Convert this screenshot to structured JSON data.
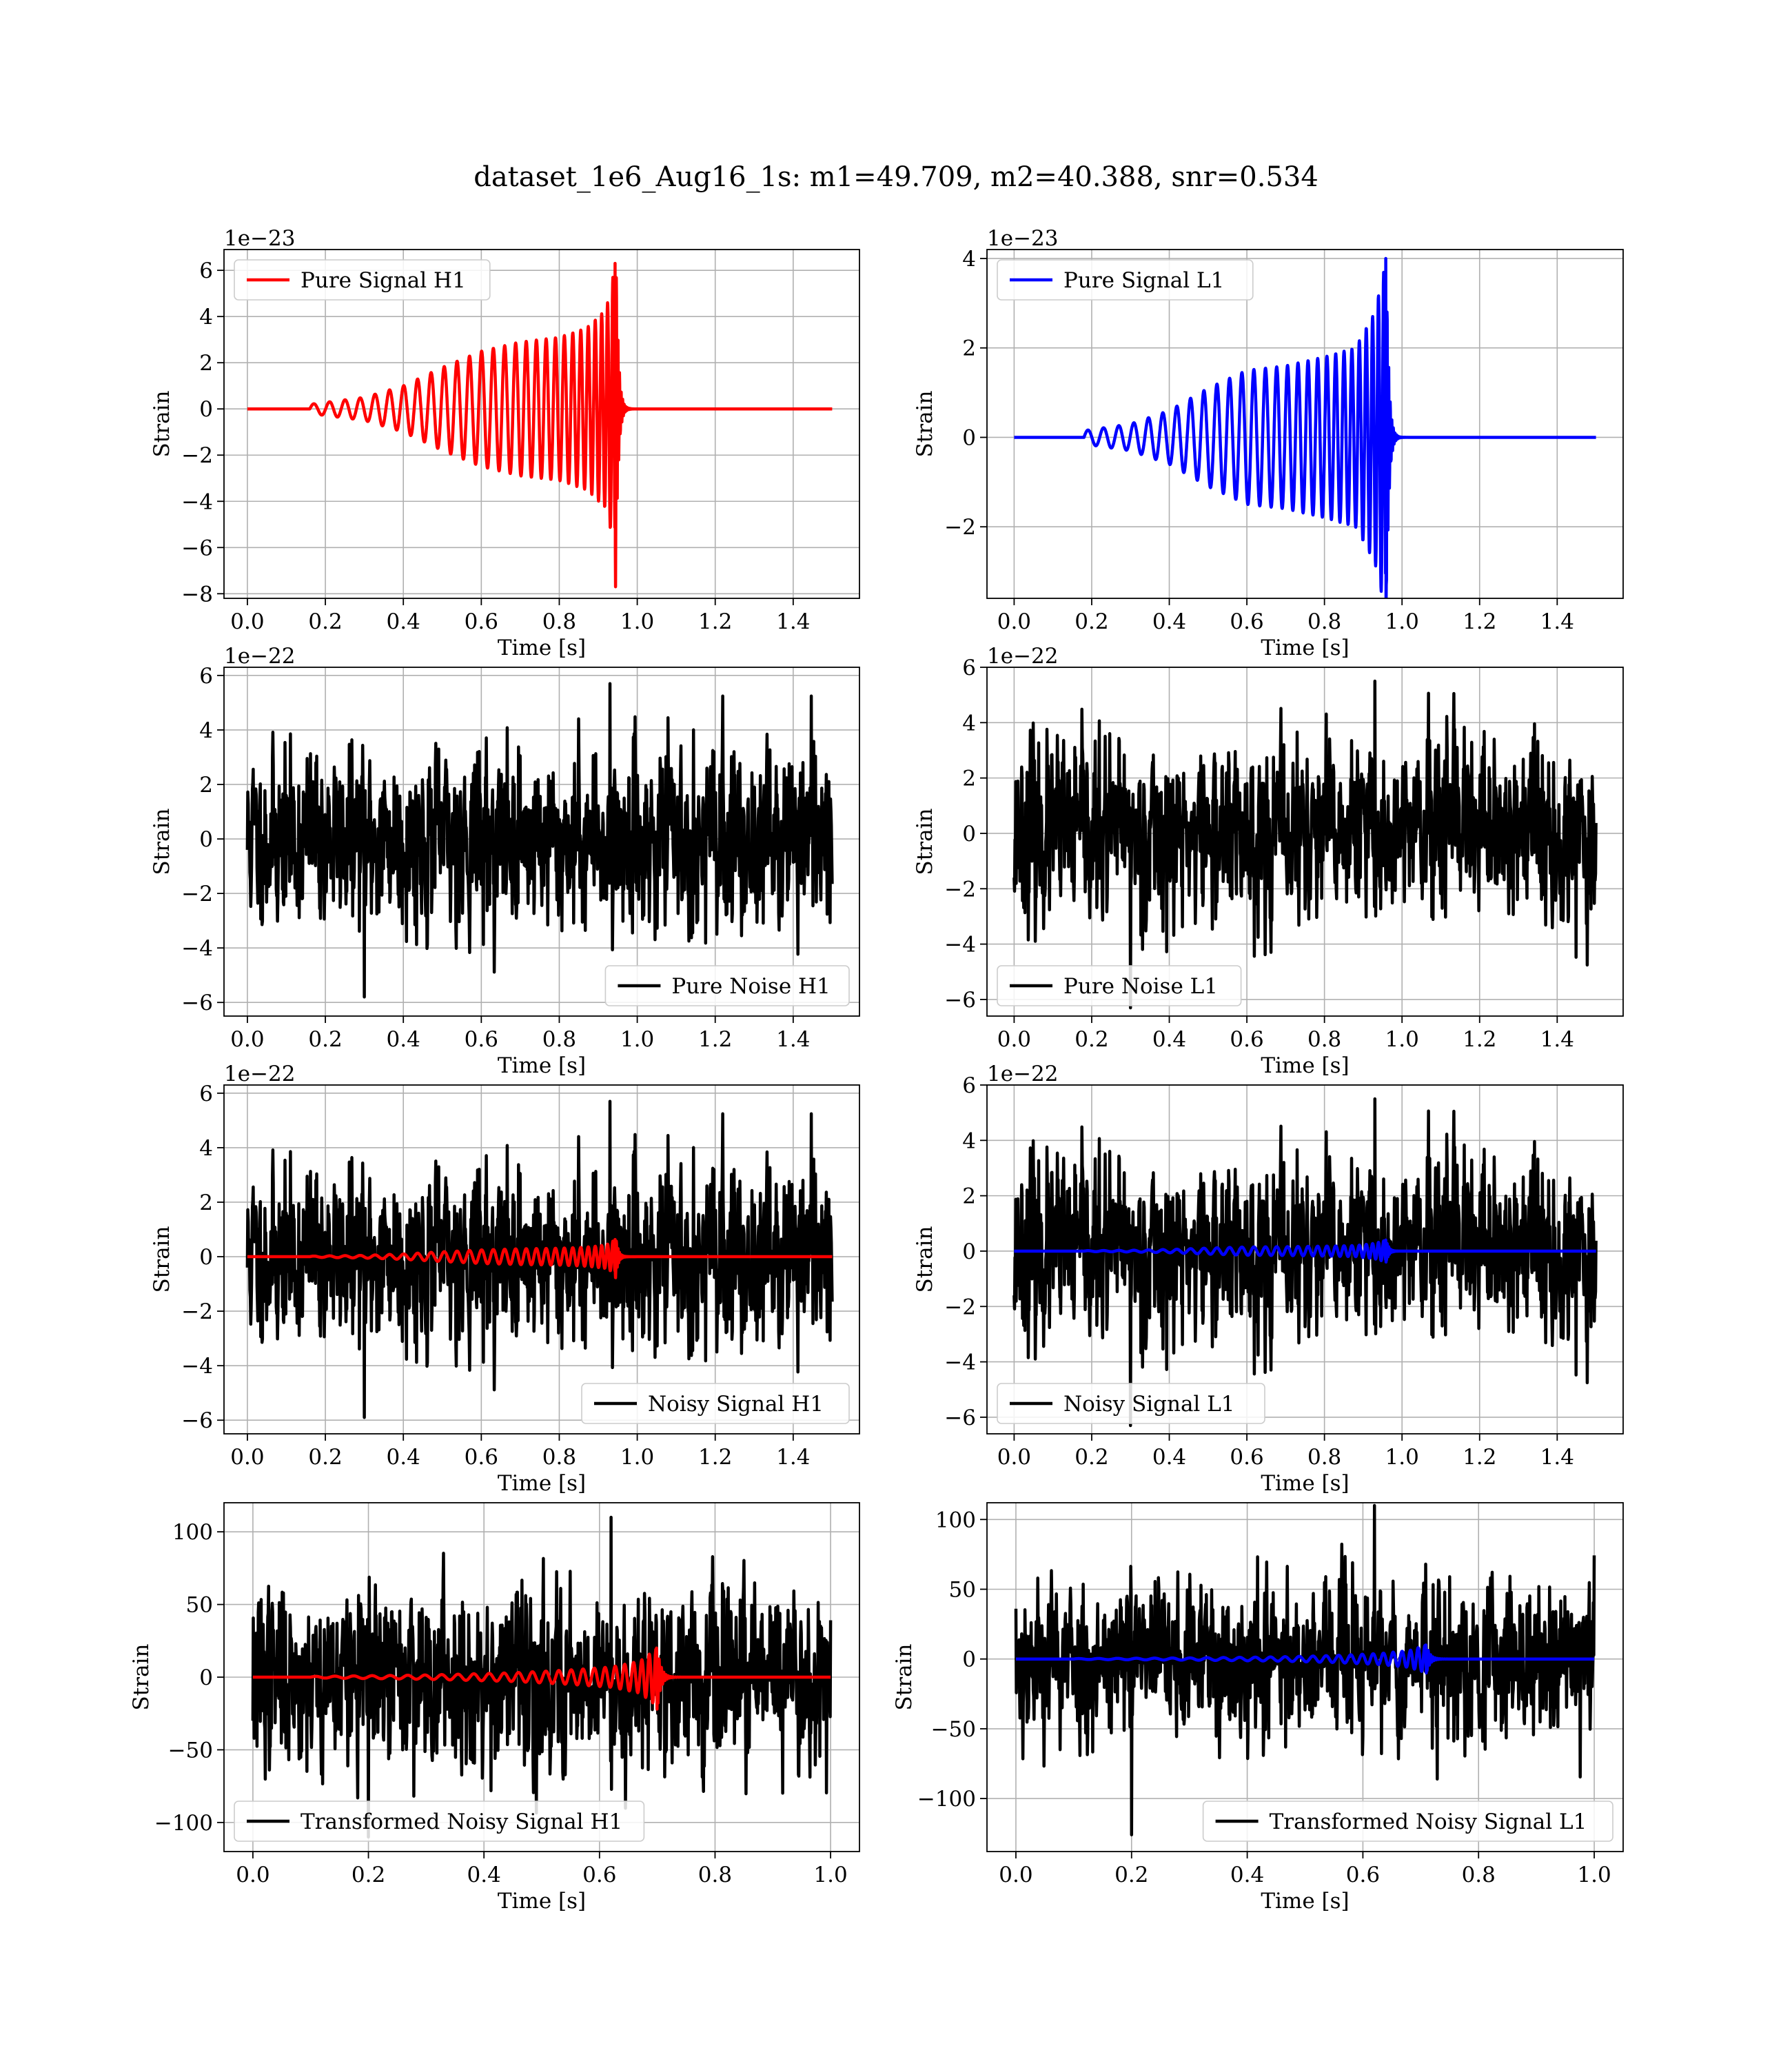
{
  "figure": {
    "suptitle": "dataset_1e6_Aug16_1s: m1=49.709, m2=40.388, snr=0.534"
  },
  "colors": {
    "h1_signal": "#ff0000",
    "l1_signal": "#0000ff",
    "noise": "#000000",
    "grid": "#b0b0b0",
    "axes": "#000000"
  },
  "chart_data": [
    {
      "id": "pure-signal-h1",
      "type": "line",
      "detector": "H1",
      "xlabel": "Time [s]",
      "ylabel": "Strain",
      "offset_text": "1e−23",
      "xlim": [
        -0.06,
        1.57
      ],
      "ylim": [
        -8.2,
        6.9
      ],
      "xticks": [
        0.0,
        0.2,
        0.4,
        0.6,
        0.8,
        1.0,
        1.2,
        1.4
      ],
      "xtick_labels": [
        "0.0",
        "0.2",
        "0.4",
        "0.6",
        "0.8",
        "1.0",
        "1.2",
        "1.4"
      ],
      "yticks": [
        -8,
        -6,
        -4,
        -2,
        0,
        2,
        4,
        6
      ],
      "ytick_labels": [
        "−8",
        "−6",
        "−4",
        "−2",
        "0",
        "2",
        "4",
        "6"
      ],
      "grid": true,
      "legend": {
        "position": "upper-left",
        "entries": [
          {
            "label": "Pure Signal H1",
            "color": "#ff0000"
          }
        ]
      },
      "series": [
        {
          "name": "Pure Signal H1",
          "color": "#ff0000",
          "kind": "chirp",
          "x_range": [
            0,
            1.5
          ],
          "start": 0.16,
          "merger": 0.945,
          "peak_pos": 6.3,
          "peak_neg": -7.7,
          "envelope": [
            [
              0.16,
              0.2
            ],
            [
              0.3,
              0.5
            ],
            [
              0.4,
              1.0
            ],
            [
              0.5,
              1.8
            ],
            [
              0.6,
              2.5
            ],
            [
              0.7,
              2.9
            ],
            [
              0.8,
              3.1
            ],
            [
              0.87,
              3.5
            ],
            [
              0.92,
              4.3
            ],
            [
              0.945,
              6.3
            ]
          ],
          "cycles": 32
        }
      ]
    },
    {
      "id": "pure-signal-l1",
      "type": "line",
      "detector": "L1",
      "xlabel": "Time [s]",
      "ylabel": "Strain",
      "offset_text": "1e−23",
      "xlim": [
        -0.07,
        1.57
      ],
      "ylim": [
        -3.6,
        4.2
      ],
      "xticks": [
        0.0,
        0.2,
        0.4,
        0.6,
        0.8,
        1.0,
        1.2,
        1.4
      ],
      "xtick_labels": [
        "0.0",
        "0.2",
        "0.4",
        "0.6",
        "0.8",
        "1.0",
        "1.2",
        "1.4"
      ],
      "yticks": [
        -2,
        0,
        2,
        4
      ],
      "ytick_labels": [
        "−2",
        "0",
        "2",
        "4"
      ],
      "grid": true,
      "legend": {
        "position": "upper-left",
        "entries": [
          {
            "label": "Pure Signal L1",
            "color": "#0000ff"
          }
        ]
      },
      "series": [
        {
          "name": "Pure Signal L1",
          "color": "#0000ff",
          "kind": "chirp",
          "x_range": [
            0,
            1.5
          ],
          "start": 0.18,
          "merger": 0.96,
          "peak_pos": 4.0,
          "peak_neg": -3.3,
          "envelope": [
            [
              0.18,
              0.15
            ],
            [
              0.3,
              0.3
            ],
            [
              0.4,
              0.6
            ],
            [
              0.5,
              1.1
            ],
            [
              0.6,
              1.5
            ],
            [
              0.7,
              1.6
            ],
            [
              0.8,
              1.8
            ],
            [
              0.88,
              2.0
            ],
            [
              0.93,
              2.8
            ],
            [
              0.96,
              4.0
            ]
          ],
          "cycles": 32
        }
      ]
    },
    {
      "id": "pure-noise-h1",
      "type": "line",
      "detector": "H1",
      "xlabel": "Time [s]",
      "ylabel": "Strain",
      "offset_text": "1e−22",
      "xlim": [
        -0.06,
        1.57
      ],
      "ylim": [
        -6.5,
        6.3
      ],
      "xticks": [
        0.0,
        0.2,
        0.4,
        0.6,
        0.8,
        1.0,
        1.2,
        1.4
      ],
      "xtick_labels": [
        "0.0",
        "0.2",
        "0.4",
        "0.6",
        "0.8",
        "1.0",
        "1.2",
        "1.4"
      ],
      "yticks": [
        -6,
        -4,
        -2,
        0,
        2,
        4,
        6
      ],
      "ytick_labels": [
        "−6",
        "−4",
        "−2",
        "0",
        "2",
        "4",
        "6"
      ],
      "grid": true,
      "legend": {
        "position": "lower-right",
        "entries": [
          {
            "label": "Pure Noise H1",
            "color": "#000000"
          }
        ]
      },
      "series": [
        {
          "name": "Pure Noise H1",
          "color": "#000000",
          "kind": "noise",
          "x_range": [
            0,
            1.5
          ],
          "sigma": 1.7,
          "max": 5.7,
          "min": -5.8,
          "seed": 11
        }
      ]
    },
    {
      "id": "pure-noise-l1",
      "type": "line",
      "detector": "L1",
      "xlabel": "Time [s]",
      "ylabel": "Strain",
      "offset_text": "1e−22",
      "xlim": [
        -0.07,
        1.57
      ],
      "ylim": [
        -6.6,
        6.0
      ],
      "xticks": [
        0.0,
        0.2,
        0.4,
        0.6,
        0.8,
        1.0,
        1.2,
        1.4
      ],
      "xtick_labels": [
        "0.0",
        "0.2",
        "0.4",
        "0.6",
        "0.8",
        "1.0",
        "1.2",
        "1.4"
      ],
      "yticks": [
        -6,
        -4,
        -2,
        0,
        2,
        4,
        6
      ],
      "ytick_labels": [
        "−6",
        "−4",
        "−2",
        "0",
        "2",
        "4",
        "6"
      ],
      "grid": true,
      "legend": {
        "position": "lower-left",
        "entries": [
          {
            "label": "Pure Noise L1",
            "color": "#000000"
          }
        ]
      },
      "series": [
        {
          "name": "Pure Noise L1",
          "color": "#000000",
          "kind": "noise",
          "x_range": [
            0,
            1.5
          ],
          "sigma": 1.7,
          "max": 5.5,
          "min": -6.3,
          "seed": 23
        }
      ]
    },
    {
      "id": "noisy-signal-h1",
      "type": "line",
      "detector": "H1",
      "xlabel": "Time [s]",
      "ylabel": "Strain",
      "offset_text": "1e−22",
      "xlim": [
        -0.06,
        1.57
      ],
      "ylim": [
        -6.5,
        6.3
      ],
      "xticks": [
        0.0,
        0.2,
        0.4,
        0.6,
        0.8,
        1.0,
        1.2,
        1.4
      ],
      "xtick_labels": [
        "0.0",
        "0.2",
        "0.4",
        "0.6",
        "0.8",
        "1.0",
        "1.2",
        "1.4"
      ],
      "yticks": [
        -6,
        -4,
        -2,
        0,
        2,
        4,
        6
      ],
      "ytick_labels": [
        "−6",
        "−4",
        "−2",
        "0",
        "2",
        "4",
        "6"
      ],
      "grid": true,
      "legend": {
        "position": "lower-right",
        "entries": [
          {
            "label": "Noisy Signal H1",
            "color": "#000000"
          }
        ]
      },
      "series": [
        {
          "name": "Noisy Signal H1",
          "color": "#000000",
          "kind": "noise",
          "x_range": [
            0,
            1.5
          ],
          "sigma": 1.7,
          "max": 5.7,
          "min": -5.9,
          "seed": 11
        },
        {
          "color": "#ff0000",
          "kind": "chirp",
          "x_range": [
            0,
            1.5
          ],
          "start": 0.16,
          "merger": 0.945,
          "peak_pos": 0.63,
          "peak_neg": -0.77,
          "envelope": [
            [
              0.16,
              0.02
            ],
            [
              0.3,
              0.05
            ],
            [
              0.4,
              0.1
            ],
            [
              0.5,
              0.18
            ],
            [
              0.6,
              0.25
            ],
            [
              0.7,
              0.29
            ],
            [
              0.8,
              0.31
            ],
            [
              0.87,
              0.35
            ],
            [
              0.92,
              0.43
            ],
            [
              0.945,
              0.63
            ]
          ],
          "cycles": 32
        }
      ]
    },
    {
      "id": "noisy-signal-l1",
      "type": "line",
      "detector": "L1",
      "xlabel": "Time [s]",
      "ylabel": "Strain",
      "offset_text": "1e−22",
      "xlim": [
        -0.07,
        1.57
      ],
      "ylim": [
        -6.6,
        6.0
      ],
      "xticks": [
        0.0,
        0.2,
        0.4,
        0.6,
        0.8,
        1.0,
        1.2,
        1.4
      ],
      "xtick_labels": [
        "0.0",
        "0.2",
        "0.4",
        "0.6",
        "0.8",
        "1.0",
        "1.2",
        "1.4"
      ],
      "yticks": [
        -6,
        -4,
        -2,
        0,
        2,
        4,
        6
      ],
      "ytick_labels": [
        "−6",
        "−4",
        "−2",
        "0",
        "2",
        "4",
        "6"
      ],
      "grid": true,
      "legend": {
        "position": "lower-left",
        "entries": [
          {
            "label": "Noisy Signal L1",
            "color": "#000000"
          }
        ]
      },
      "series": [
        {
          "name": "Noisy Signal L1",
          "color": "#000000",
          "kind": "noise",
          "x_range": [
            0,
            1.5
          ],
          "sigma": 1.7,
          "max": 5.5,
          "min": -6.3,
          "seed": 23
        },
        {
          "color": "#0000ff",
          "kind": "chirp",
          "x_range": [
            0,
            1.5
          ],
          "start": 0.18,
          "merger": 0.96,
          "peak_pos": 0.4,
          "peak_neg": -0.33,
          "envelope": [
            [
              0.18,
              0.015
            ],
            [
              0.3,
              0.03
            ],
            [
              0.4,
              0.06
            ],
            [
              0.5,
              0.11
            ],
            [
              0.6,
              0.15
            ],
            [
              0.7,
              0.16
            ],
            [
              0.8,
              0.18
            ],
            [
              0.88,
              0.2
            ],
            [
              0.93,
              0.28
            ],
            [
              0.96,
              0.4
            ]
          ],
          "cycles": 32
        }
      ]
    },
    {
      "id": "transformed-noisy-signal-h1",
      "type": "line",
      "detector": "H1",
      "xlabel": "Time [s]",
      "ylabel": "Strain",
      "offset_text": "",
      "xlim": [
        -0.05,
        1.05
      ],
      "ylim": [
        -120,
        120
      ],
      "xticks": [
        0.0,
        0.2,
        0.4,
        0.6,
        0.8,
        1.0
      ],
      "xtick_labels": [
        "0.0",
        "0.2",
        "0.4",
        "0.6",
        "0.8",
        "1.0"
      ],
      "yticks": [
        -100,
        -50,
        0,
        50,
        100
      ],
      "ytick_labels": [
        "−100",
        "−50",
        "0",
        "50",
        "100"
      ],
      "grid": true,
      "legend": {
        "position": "lower-left",
        "entries": [
          {
            "label": "Transformed Noisy Signal H1",
            "color": "#000000"
          }
        ]
      },
      "series": [
        {
          "name": "Transformed Noisy Signal H1",
          "color": "#000000",
          "kind": "noise",
          "x_range": [
            0,
            1.0
          ],
          "sigma": 32,
          "max": 110,
          "min": -110,
          "seed": 37
        },
        {
          "color": "#ff0000",
          "kind": "chirp",
          "x_range": [
            0,
            1.0
          ],
          "start": 0.1,
          "merger": 0.7,
          "peak_pos": 20,
          "peak_neg": -22,
          "envelope": [
            [
              0.1,
              0.5
            ],
            [
              0.3,
              1.5
            ],
            [
              0.45,
              3
            ],
            [
              0.55,
              5
            ],
            [
              0.62,
              7
            ],
            [
              0.67,
              11
            ],
            [
              0.7,
              20
            ]
          ],
          "cycles": 30
        }
      ]
    },
    {
      "id": "transformed-noisy-signal-l1",
      "type": "line",
      "detector": "L1",
      "xlabel": "Time [s]",
      "ylabel": "Strain",
      "offset_text": "",
      "xlim": [
        -0.05,
        1.05
      ],
      "ylim": [
        -138,
        112
      ],
      "xticks": [
        0.0,
        0.2,
        0.4,
        0.6,
        0.8,
        1.0
      ],
      "xtick_labels": [
        "0.0",
        "0.2",
        "0.4",
        "0.6",
        "0.8",
        "1.0"
      ],
      "yticks": [
        -100,
        -50,
        0,
        50,
        100
      ],
      "ytick_labels": [
        "−100",
        "−50",
        "0",
        "50",
        "100"
      ],
      "grid": true,
      "legend": {
        "position": "lower-right",
        "entries": [
          {
            "label": "Transformed Noisy Signal L1",
            "color": "#000000"
          }
        ]
      },
      "series": [
        {
          "name": "Transformed Noisy Signal L1",
          "color": "#000000",
          "kind": "noise",
          "x_range": [
            0,
            1.0
          ],
          "sigma": 30,
          "max": 110,
          "min": -126,
          "seed": 53
        },
        {
          "color": "#0000ff",
          "kind": "chirp",
          "x_range": [
            0,
            1.0
          ],
          "start": 0.1,
          "merger": 0.71,
          "peak_pos": 10,
          "peak_neg": -10,
          "envelope": [
            [
              0.1,
              0.3
            ],
            [
              0.3,
              0.8
            ],
            [
              0.45,
              1.5
            ],
            [
              0.55,
              2.5
            ],
            [
              0.63,
              4
            ],
            [
              0.68,
              6
            ],
            [
              0.71,
              10
            ]
          ],
          "cycles": 30
        }
      ]
    }
  ]
}
